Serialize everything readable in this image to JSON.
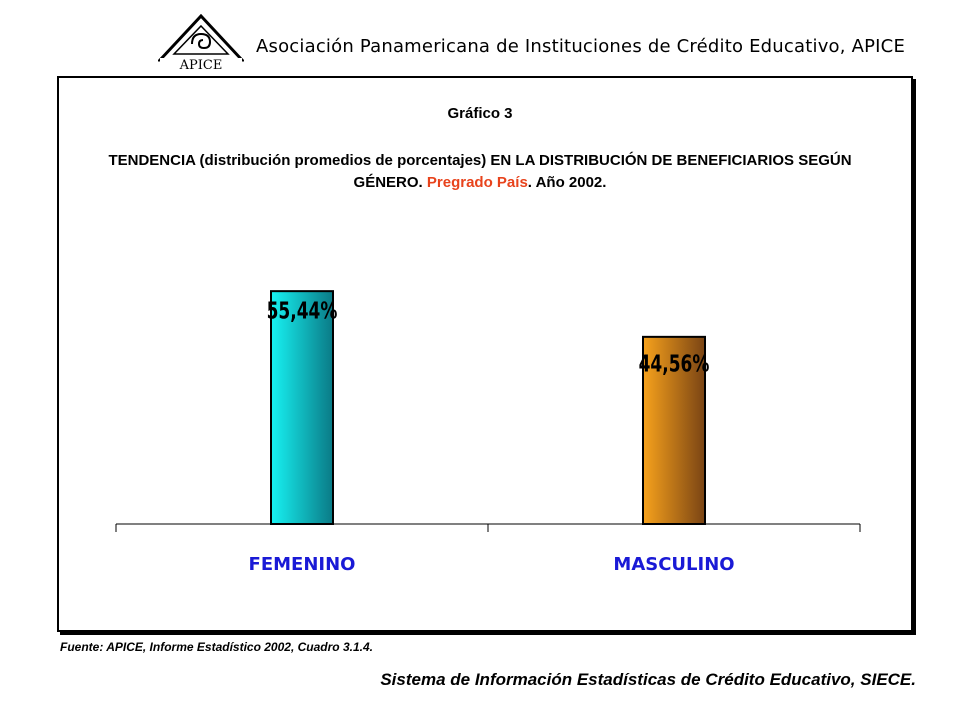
{
  "header": {
    "logo_text": "APICE",
    "org_name": "Asociación Panamericana de Instituciones de Crédito Educativo, APICE"
  },
  "chart_data": {
    "type": "bar",
    "chart_number": "Gráfico 3",
    "title_part1": "TENDENCIA (distribución promedios de porcentajes) EN LA DISTRIBUCIÓN DE BENEFICIARIOS SEGÚN GÉNERO. ",
    "title_accent": "Pregrado País",
    "title_part2": ". Año 2002.",
    "categories": [
      "FEMENINO",
      "MASCULINO"
    ],
    "values": [
      55.44,
      44.56
    ],
    "value_labels": [
      "55,44%",
      "44,56%"
    ],
    "ylim": [
      0,
      65
    ],
    "colors": [
      "#12c9cf",
      "#e8861a"
    ]
  },
  "source": "Fuente: APICE, Informe Estadístico 2002, Cuadro 3.1.4.",
  "footer": "Sistema de Información Estadísticas de Crédito Educativo, SIECE."
}
